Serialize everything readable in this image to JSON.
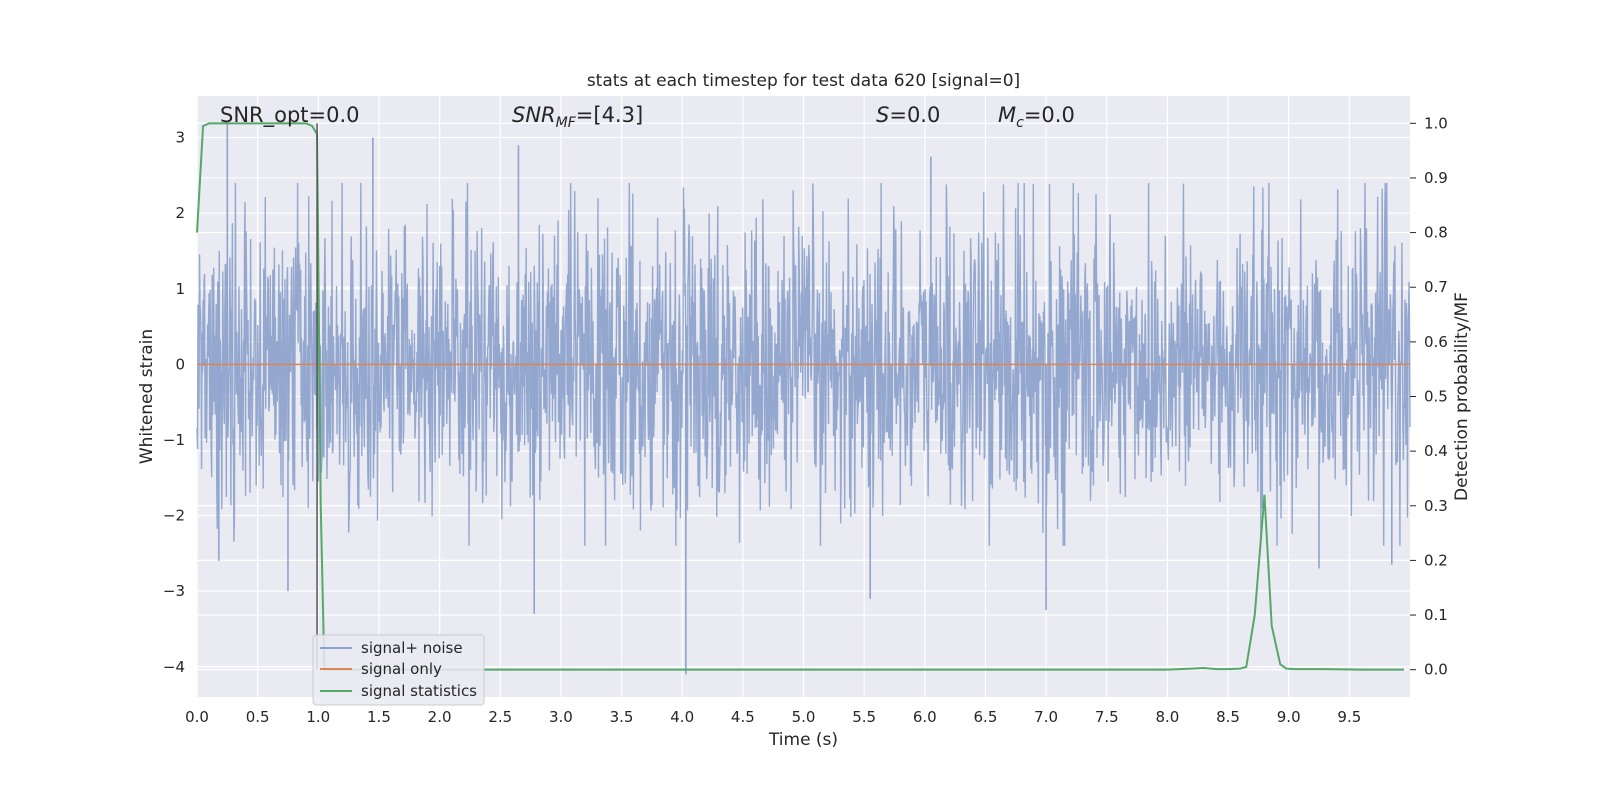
{
  "chart_data": {
    "type": "line",
    "title": "stats at each timestep for test data 620 [signal=0]",
    "xlabel": "Time (s)",
    "ylabel_left": "Whitened strain",
    "ylabel_right": "Detection probability/MF",
    "xlim": [
      0.0,
      10.0
    ],
    "ylim_left": [
      -4.4,
      3.55
    ],
    "ylim_right": [
      -0.05,
      1.05
    ],
    "x_ticks": [
      "0.0",
      "0.5",
      "1.0",
      "1.5",
      "2.0",
      "2.5",
      "3.0",
      "3.5",
      "4.0",
      "4.5",
      "5.0",
      "5.5",
      "6.0",
      "6.5",
      "7.0",
      "7.5",
      "8.0",
      "8.5",
      "9.0",
      "9.5"
    ],
    "y_ticks_left": [
      "3",
      "2",
      "1",
      "0",
      "−1",
      "−2",
      "−3",
      "−4"
    ],
    "y_ticks_right": [
      "1.0",
      "0.9",
      "0.8",
      "0.7",
      "0.6",
      "0.5",
      "0.4",
      "0.3",
      "0.2",
      "0.1",
      "0.0"
    ],
    "annotations": [
      {
        "text": "SNR_opt=0.0"
      },
      {
        "base": "SNR",
        "sub": "MF",
        "rest": "=[4.3]"
      },
      {
        "base": "S",
        "sub": "",
        "rest": "=0.0"
      },
      {
        "base": "M",
        "sub": "c",
        "rest": "=0.0"
      }
    ],
    "legend": {
      "placement": "lower-left",
      "entries": [
        "signal+ noise",
        "signal only",
        "signal statistics"
      ]
    },
    "series": [
      {
        "name": "signal+ noise",
        "axis": "left",
        "color": "#8fa4cc",
        "description": "whitened noise, approx. range -4 to 3",
        "noise_std": 1.0,
        "spikes": [
          {
            "x": 0.25,
            "y": 3.2
          },
          {
            "x": 0.18,
            "y": -2.6
          },
          {
            "x": 0.75,
            "y": -3.0
          },
          {
            "x": 1.45,
            "y": 3.0
          },
          {
            "x": 2.65,
            "y": 2.9
          },
          {
            "x": 2.78,
            "y": -3.3
          },
          {
            "x": 4.03,
            "y": -4.1
          },
          {
            "x": 5.55,
            "y": -3.1
          },
          {
            "x": 6.05,
            "y": 2.75
          },
          {
            "x": 7.0,
            "y": -3.25
          },
          {
            "x": 9.25,
            "y": -2.7
          },
          {
            "x": 9.85,
            "y": -2.65
          }
        ]
      },
      {
        "name": "signal only",
        "axis": "left",
        "color": "#dd8452",
        "x": [
          0.0,
          10.0
        ],
        "y": [
          0.0,
          0.0
        ]
      },
      {
        "name": "signal statistics",
        "axis": "right",
        "color": "#55a868",
        "x": [
          0.0,
          0.05,
          0.1,
          0.9,
          0.95,
          0.99,
          1.02,
          1.05,
          1.1,
          1.5,
          2.0,
          3.0,
          4.0,
          5.0,
          6.0,
          7.0,
          8.0,
          8.2,
          8.3,
          8.4,
          8.5,
          8.6,
          8.65,
          8.72,
          8.8,
          8.86,
          8.93,
          8.98,
          9.05,
          9.3,
          9.6,
          9.95
        ],
        "y": [
          0.8,
          0.995,
          1.0,
          1.0,
          0.995,
          0.98,
          0.3,
          0.0,
          0.0,
          0.0,
          0.0,
          0.0,
          0.0,
          0.0,
          0.0,
          0.0,
          0.0,
          0.002,
          0.003,
          0.001,
          0.001,
          0.002,
          0.005,
          0.1,
          0.32,
          0.08,
          0.01,
          0.002,
          0.001,
          0.001,
          0.0,
          0.0
        ]
      },
      {
        "name": "event marker",
        "axis": "right",
        "color": "#555555",
        "x": [
          0.99,
          0.99
        ],
        "y": [
          1.0,
          0.0
        ]
      }
    ]
  }
}
